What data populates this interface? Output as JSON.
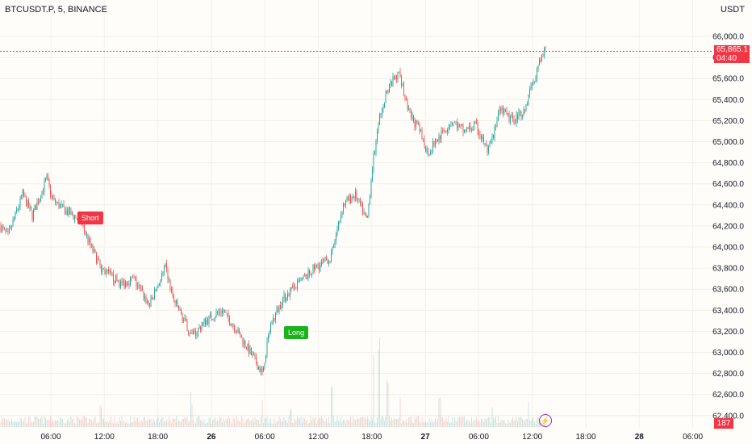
{
  "header": {
    "symbol": "BTCUSDT.P, 5, BINANCE",
    "currency": "USDT"
  },
  "last_price_tag": {
    "price": "65,865.1",
    "countdown": "04:40"
  },
  "volume_tag": "187",
  "signals": {
    "short": "Short",
    "long": "Long"
  },
  "colors": {
    "up": "#26a69a",
    "down": "#ef5350",
    "last_price": "#f23645",
    "signal_short": "#f23645",
    "signal_long": "#1bb31b",
    "bolt": "#9c27b0"
  },
  "icons": {
    "bolt": "lightning-icon"
  },
  "chart_data": {
    "type": "candlestick",
    "title": "",
    "y_axis_ticks": [
      "66,000.0",
      "65,800.0",
      "65,600.0",
      "65,400.0",
      "65,200.0",
      "65,000.0",
      "64,800.0",
      "64,600.0",
      "64,400.0",
      "64,200.0",
      "64,000.0",
      "63,800.0",
      "63,600.0",
      "63,400.0",
      "63,200.0",
      "63,000.0",
      "62,800.0",
      "62,600.0",
      "62,400.0"
    ],
    "ylim": [
      62300,
      66150
    ],
    "x_axis_ticks": [
      "06:00",
      "12:00",
      "18:00",
      "26",
      "06:00",
      "12:00",
      "18:00",
      "27",
      "06:00",
      "12:00",
      "18:00",
      "28",
      "06:00"
    ],
    "x_axis_bold": [
      false,
      false,
      false,
      true,
      false,
      false,
      false,
      true,
      false,
      false,
      false,
      true,
      false
    ],
    "last_price": 65865.1,
    "price_path": [
      [
        0,
        64200
      ],
      [
        10,
        64100
      ],
      [
        28,
        64500
      ],
      [
        40,
        64300
      ],
      [
        58,
        64650
      ],
      [
        65,
        64450
      ],
      [
        80,
        64350
      ],
      [
        100,
        64250
      ],
      [
        110,
        64050
      ],
      [
        125,
        63800
      ],
      [
        150,
        63650
      ],
      [
        165,
        63700
      ],
      [
        185,
        63450
      ],
      [
        205,
        63800
      ],
      [
        215,
        63500
      ],
      [
        225,
        63350
      ],
      [
        238,
        63150
      ],
      [
        255,
        63300
      ],
      [
        275,
        63400
      ],
      [
        290,
        63250
      ],
      [
        310,
        63000
      ],
      [
        325,
        62800
      ],
      [
        335,
        63250
      ],
      [
        350,
        63500
      ],
      [
        370,
        63650
      ],
      [
        390,
        63800
      ],
      [
        410,
        63900
      ],
      [
        425,
        64400
      ],
      [
        440,
        64500
      ],
      [
        455,
        64250
      ],
      [
        462,
        64800
      ],
      [
        470,
        65200
      ],
      [
        480,
        65500
      ],
      [
        495,
        65650
      ],
      [
        505,
        65300
      ],
      [
        520,
        65100
      ],
      [
        530,
        64900
      ],
      [
        545,
        65050
      ],
      [
        560,
        65200
      ],
      [
        575,
        65100
      ],
      [
        590,
        65150
      ],
      [
        605,
        64900
      ],
      [
        620,
        65300
      ],
      [
        635,
        65200
      ],
      [
        650,
        65300
      ],
      [
        662,
        65600
      ],
      [
        676,
        65900
      ]
    ],
    "volume_peaks": [
      [
        470,
        120
      ],
      [
        463,
        90
      ],
      [
        480,
        70
      ],
      [
        496,
        60
      ],
      [
        411,
        50
      ],
      [
        545,
        55
      ],
      [
        237,
        45
      ],
      [
        125,
        30
      ],
      [
        325,
        35
      ],
      [
        360,
        25
      ],
      [
        610,
        30
      ],
      [
        655,
        40
      ]
    ]
  }
}
